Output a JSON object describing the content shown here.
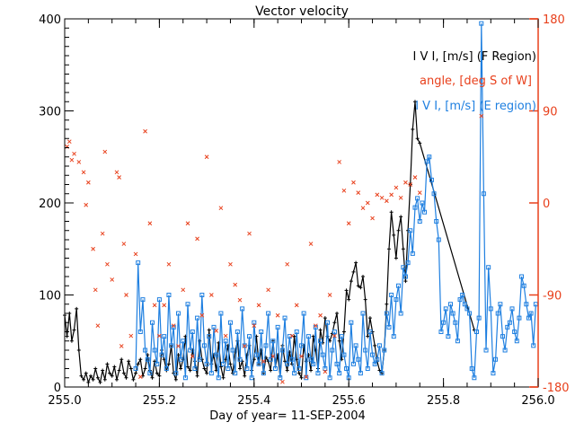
{
  "chart_data": {
    "type": "line",
    "title": "Vector velocity",
    "xlabel": "Day of year= 11-SEP-2004",
    "ylabel": "",
    "y2label": "",
    "xlim": [
      255.0,
      256.0
    ],
    "ylim": [
      0,
      400
    ],
    "y2lim": [
      -180,
      180
    ],
    "x_ticks": [
      "255.0",
      "255.2",
      "255.4",
      "255.6",
      "255.8",
      "256.0"
    ],
    "x_tick_values": [
      255.0,
      255.2,
      255.4,
      255.6,
      255.8,
      256.0
    ],
    "y_ticks": [
      "0",
      "100",
      "200",
      "300",
      "400"
    ],
    "y_tick_values": [
      0,
      100,
      200,
      300,
      400
    ],
    "y2_ticks": [
      "-180",
      "-90",
      "0",
      "90",
      "180"
    ],
    "y2_tick_values": [
      -180,
      -90,
      0,
      90,
      180
    ],
    "legend": {
      "placement": "top-right",
      "entries": [
        {
          "label": "I V I, [m/s] (F Region)",
          "color": "#000000"
        },
        {
          "label": "angle, [deg S of W]",
          "color": "#e8401c"
        },
        {
          "label": "I V I, [m/s] (E region)",
          "color": "#1e7fe0"
        }
      ]
    },
    "colors": {
      "axis_left": "#000000",
      "axis_right": "#e8401c",
      "f_region": "#000000",
      "angle": "#e8401c",
      "e_region": "#1e7fe0"
    },
    "series": [
      {
        "name": "|V| F Region",
        "axis": "left",
        "style": "line+plus",
        "x": [
          255.0,
          255.005,
          255.01,
          255.015,
          255.02,
          255.025,
          255.03,
          255.035,
          255.04,
          255.045,
          255.05,
          255.055,
          255.06,
          255.065,
          255.07,
          255.075,
          255.08,
          255.085,
          255.09,
          255.095,
          255.1,
          255.105,
          255.11,
          255.115,
          255.12,
          255.125,
          255.13,
          255.135,
          255.14,
          255.145,
          255.15,
          255.155,
          255.16,
          255.165,
          255.17,
          255.175,
          255.18,
          255.185,
          255.19,
          255.195,
          255.2,
          255.205,
          255.21,
          255.215,
          255.22,
          255.225,
          255.23,
          255.235,
          255.24,
          255.245,
          255.25,
          255.255,
          255.26,
          255.265,
          255.27,
          255.275,
          255.28,
          255.285,
          255.29,
          255.295,
          255.3,
          255.305,
          255.31,
          255.315,
          255.32,
          255.325,
          255.33,
          255.335,
          255.34,
          255.345,
          255.35,
          255.355,
          255.36,
          255.365,
          255.37,
          255.375,
          255.38,
          255.385,
          255.39,
          255.395,
          255.4,
          255.405,
          255.41,
          255.415,
          255.42,
          255.425,
          255.43,
          255.435,
          255.44,
          255.445,
          255.45,
          255.455,
          255.46,
          255.465,
          255.47,
          255.475,
          255.48,
          255.485,
          255.49,
          255.495,
          255.5,
          255.505,
          255.51,
          255.515,
          255.52,
          255.525,
          255.53,
          255.535,
          255.54,
          255.545,
          255.55,
          255.555,
          255.56,
          255.565,
          255.57,
          255.575,
          255.58,
          255.585,
          255.59,
          255.595,
          255.6,
          255.605,
          255.61,
          255.615,
          255.62,
          255.625,
          255.63,
          255.635,
          255.64,
          255.645,
          255.65,
          255.655,
          255.66,
          255.665,
          255.67,
          255.675,
          255.68,
          255.685,
          255.69,
          255.695,
          255.7,
          255.705,
          255.71,
          255.715,
          255.72,
          255.725,
          255.73,
          255.735,
          255.74,
          255.745,
          255.75,
          255.865
        ],
        "y": [
          78,
          55,
          80,
          50,
          62,
          85,
          40,
          12,
          8,
          15,
          5,
          12,
          8,
          20,
          10,
          5,
          18,
          8,
          25,
          15,
          12,
          22,
          8,
          18,
          30,
          15,
          10,
          28,
          20,
          8,
          15,
          25,
          30,
          12,
          20,
          35,
          18,
          10,
          28,
          15,
          12,
          40,
          30,
          18,
          25,
          45,
          15,
          8,
          35,
          20,
          30,
          55,
          22,
          18,
          40,
          28,
          12,
          50,
          30,
          20,
          15,
          62,
          25,
          35,
          18,
          48,
          22,
          10,
          30,
          45,
          25,
          15,
          38,
          50,
          20,
          28,
          12,
          35,
          45,
          18,
          30,
          55,
          25,
          40,
          15,
          32,
          28,
          18,
          50,
          22,
          35,
          12,
          45,
          28,
          18,
          38,
          25,
          55,
          30,
          15,
          10,
          45,
          28,
          35,
          18,
          55,
          40,
          20,
          62,
          48,
          75,
          55,
          50,
          58,
          70,
          80,
          50,
          30,
          60,
          105,
          95,
          115,
          125,
          135,
          110,
          108,
          120,
          95,
          55,
          75,
          60,
          45,
          28,
          18,
          15,
          40,
          90,
          150,
          190,
          165,
          140,
          170,
          185,
          150,
          115,
          170,
          220,
          280,
          310,
          270,
          265,
          62
        ]
      },
      {
        "name": "|V| E region",
        "axis": "left",
        "style": "line+square",
        "x": [
          255.15,
          255.155,
          255.16,
          255.165,
          255.17,
          255.175,
          255.18,
          255.185,
          255.19,
          255.195,
          255.2,
          255.205,
          255.21,
          255.215,
          255.22,
          255.225,
          255.23,
          255.235,
          255.24,
          255.245,
          255.25,
          255.255,
          255.26,
          255.265,
          255.27,
          255.275,
          255.28,
          255.285,
          255.29,
          255.295,
          255.3,
          255.305,
          255.31,
          255.315,
          255.32,
          255.325,
          255.33,
          255.335,
          255.34,
          255.345,
          255.35,
          255.355,
          255.36,
          255.365,
          255.37,
          255.375,
          255.38,
          255.385,
          255.39,
          255.395,
          255.4,
          255.405,
          255.41,
          255.415,
          255.42,
          255.425,
          255.43,
          255.435,
          255.44,
          255.445,
          255.45,
          255.455,
          255.46,
          255.465,
          255.47,
          255.475,
          255.48,
          255.485,
          255.49,
          255.495,
          255.5,
          255.505,
          255.51,
          255.515,
          255.52,
          255.525,
          255.53,
          255.535,
          255.54,
          255.545,
          255.55,
          255.555,
          255.56,
          255.565,
          255.57,
          255.575,
          255.58,
          255.585,
          255.59,
          255.595,
          255.6,
          255.605,
          255.61,
          255.615,
          255.62,
          255.625,
          255.63,
          255.635,
          255.64,
          255.645,
          255.65,
          255.655,
          255.66,
          255.665,
          255.67,
          255.675,
          255.68,
          255.685,
          255.69,
          255.695,
          255.7,
          255.705,
          255.71,
          255.715,
          255.72,
          255.725,
          255.73,
          255.735,
          255.74,
          255.745,
          255.75,
          255.755,
          255.76,
          255.765,
          255.77,
          255.775,
          255.78,
          255.785,
          255.79,
          255.795,
          255.8,
          255.805,
          255.81,
          255.815,
          255.82,
          255.825,
          255.83,
          255.835,
          255.84,
          255.845,
          255.85,
          255.855,
          255.86,
          255.865,
          255.87,
          255.875,
          255.88,
          255.885,
          255.89,
          255.895,
          255.9,
          255.905,
          255.91,
          255.915,
          255.92,
          255.925,
          255.93,
          255.935,
          255.94,
          255.945,
          255.95,
          255.955,
          255.96,
          255.965,
          255.97,
          255.975,
          255.98,
          255.985,
          255.99,
          255.995
        ],
        "y": [
          20,
          135,
          60,
          95,
          40,
          30,
          15,
          70,
          40,
          25,
          95,
          35,
          55,
          20,
          100,
          45,
          65,
          15,
          80,
          30,
          50,
          10,
          90,
          40,
          60,
          20,
          75,
          30,
          100,
          45,
          25,
          55,
          15,
          65,
          35,
          10,
          80,
          25,
          50,
          20,
          70,
          40,
          15,
          60,
          30,
          85,
          45,
          20,
          55,
          10,
          70,
          35,
          25,
          60,
          15,
          45,
          80,
          30,
          50,
          20,
          65,
          10,
          40,
          75,
          25,
          55,
          30,
          15,
          60,
          20,
          45,
          80,
          10,
          55,
          30,
          25,
          65,
          15,
          50,
          35,
          20,
          70,
          10,
          40,
          60,
          25,
          15,
          55,
          35,
          20,
          10,
          70,
          25,
          45,
          30,
          15,
          80,
          40,
          20,
          60,
          35,
          25,
          30,
          45,
          15,
          40,
          80,
          65,
          100,
          55,
          95,
          110,
          80,
          130,
          120,
          135,
          170,
          145,
          195,
          205,
          180,
          200,
          190,
          245,
          250,
          225,
          210,
          180,
          160,
          60,
          70,
          85,
          55,
          90,
          80,
          70,
          50,
          95,
          100,
          90,
          85,
          80,
          20,
          10,
          60,
          75,
          395,
          210,
          40,
          130,
          85,
          15,
          30,
          80,
          90,
          55,
          40,
          65,
          70,
          85,
          60,
          50,
          75,
          120,
          110,
          90,
          75,
          80,
          45,
          90
        ]
      },
      {
        "name": "angle",
        "axis": "right",
        "style": "cross",
        "x": [
          255.005,
          255.01,
          255.015,
          255.02,
          255.03,
          255.04,
          255.045,
          255.05,
          255.06,
          255.065,
          255.07,
          255.08,
          255.085,
          255.09,
          255.1,
          255.11,
          255.115,
          255.12,
          255.125,
          255.13,
          255.14,
          255.15,
          255.16,
          255.17,
          255.18,
          255.19,
          255.2,
          255.21,
          255.22,
          255.23,
          255.24,
          255.25,
          255.26,
          255.27,
          255.28,
          255.29,
          255.3,
          255.31,
          255.32,
          255.33,
          255.34,
          255.35,
          255.36,
          255.37,
          255.38,
          255.39,
          255.4,
          255.41,
          255.42,
          255.43,
          255.44,
          255.45,
          255.46,
          255.47,
          255.48,
          255.49,
          255.5,
          255.51,
          255.52,
          255.53,
          255.54,
          255.55,
          255.56,
          255.57,
          255.58,
          255.59,
          255.6,
          255.61,
          255.62,
          255.63,
          255.64,
          255.65,
          255.66,
          255.67,
          255.68,
          255.69,
          255.7,
          255.71,
          255.72,
          255.73,
          255.74,
          255.75,
          255.88
        ],
        "y": [
          55,
          60,
          42,
          48,
          40,
          30,
          -2,
          20,
          -45,
          -85,
          -120,
          -30,
          50,
          -60,
          -75,
          30,
          25,
          -140,
          -40,
          -90,
          -130,
          -50,
          -170,
          70,
          -20,
          -100,
          -130,
          -100,
          -60,
          -120,
          -140,
          -85,
          -20,
          -150,
          -35,
          -110,
          45,
          -90,
          -125,
          -5,
          -130,
          -60,
          -80,
          -95,
          -140,
          -30,
          -120,
          -100,
          -155,
          -85,
          -150,
          -110,
          -175,
          -60,
          -130,
          -100,
          -150,
          -170,
          -40,
          -120,
          -110,
          -165,
          -90,
          -130,
          40,
          12,
          -20,
          20,
          10,
          -5,
          0,
          -15,
          8,
          5,
          2,
          8,
          15,
          5,
          20,
          18,
          25,
          10,
          85
        ]
      }
    ]
  }
}
